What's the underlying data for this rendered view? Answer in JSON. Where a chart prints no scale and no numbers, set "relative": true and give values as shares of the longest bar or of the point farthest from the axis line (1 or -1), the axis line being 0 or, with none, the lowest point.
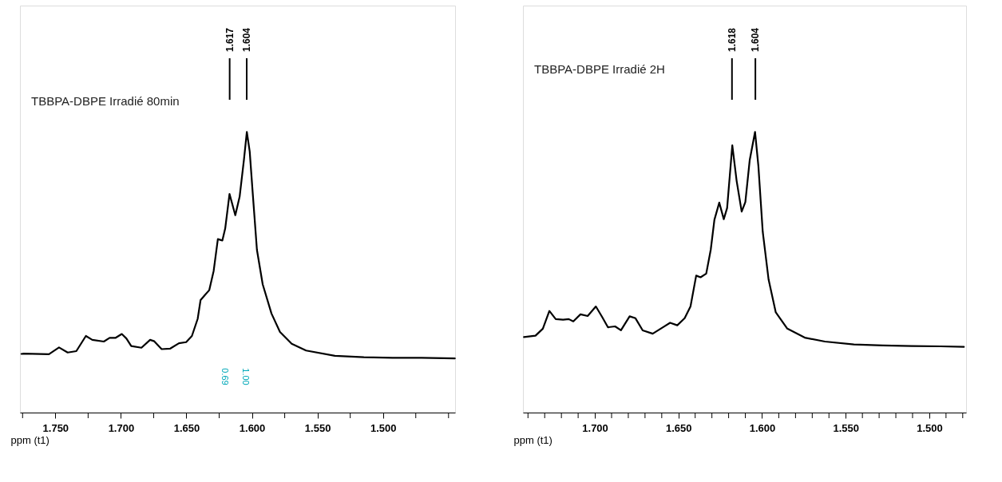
{
  "chart_data": [
    {
      "type": "line",
      "title": "TBBPA-DBPE Irradié 80min",
      "xlabel": "ppm (t1)",
      "relative": true,
      "tick_labels": "x",
      "grid": false,
      "marker": "none",
      "line_style": "solid",
      "xlim": [
        1.777,
        1.445
      ],
      "xticks": [
        {
          "value": 1.775,
          "label": null
        },
        {
          "value": 1.75,
          "label": "1.750"
        },
        {
          "value": 1.725,
          "label": null
        },
        {
          "value": 1.7,
          "label": "1.700"
        },
        {
          "value": 1.675,
          "label": null
        },
        {
          "value": 1.65,
          "label": "1.650"
        },
        {
          "value": 1.625,
          "label": null
        },
        {
          "value": 1.6,
          "label": "1.600"
        },
        {
          "value": 1.575,
          "label": null
        },
        {
          "value": 1.55,
          "label": "1.550"
        },
        {
          "value": 1.525,
          "label": null
        },
        {
          "value": 1.5,
          "label": "1.500"
        },
        {
          "value": 1.475,
          "label": null
        },
        {
          "value": 1.45,
          "label": null
        }
      ],
      "annotations": [
        {
          "text": "1.617",
          "x": 1.617
        },
        {
          "text": "1.604",
          "x": 1.604
        },
        "0.69",
        "1.00"
      ],
      "series": [
        {
          "color": "#000000",
          "x": [
            1.7759,
            1.7741,
            1.7549,
            1.7472,
            1.7406,
            1.734,
            1.7267,
            1.7218,
            1.713,
            1.7086,
            1.7042,
            1.6993,
            1.6958,
            1.6921,
            1.6843,
            1.6777,
            1.6745,
            1.6689,
            1.6623,
            1.6557,
            1.6502,
            1.6458,
            1.6414,
            1.6392,
            1.6326,
            1.6292,
            1.626,
            1.6226,
            1.6204,
            1.6171,
            1.6127,
            1.6094,
            1.6061,
            1.6039,
            1.6017,
            1.5995,
            1.5962,
            1.5918,
            1.5851,
            1.5786,
            1.5697,
            1.5587,
            1.5367,
            1.5146,
            1.4926,
            1.4705,
            1.4452
          ],
          "values": [
            0.209,
            0.21,
            0.208,
            0.232,
            0.214,
            0.219,
            0.273,
            0.259,
            0.253,
            0.266,
            0.266,
            0.28,
            0.264,
            0.237,
            0.231,
            0.259,
            0.254,
            0.226,
            0.228,
            0.247,
            0.251,
            0.273,
            0.334,
            0.401,
            0.436,
            0.505,
            0.618,
            0.613,
            0.656,
            0.779,
            0.703,
            0.769,
            0.901,
            1,
            0.93,
            0.788,
            0.58,
            0.457,
            0.353,
            0.287,
            0.245,
            0.221,
            0.202,
            0.197,
            0.195,
            0.195,
            0.193
          ]
        }
      ]
    },
    {
      "type": "line",
      "title": "TBBPA-DBPE Irradié 2H",
      "xlabel": "ppm (t1)",
      "relative": true,
      "tick_labels": "x",
      "grid": false,
      "marker": "none",
      "line_style": "solid",
      "xlim": [
        1.743,
        1.478
      ],
      "xticks": [
        {
          "value": 1.74,
          "label": null
        },
        {
          "value": 1.73,
          "label": null
        },
        {
          "value": 1.72,
          "label": null
        },
        {
          "value": 1.71,
          "label": null
        },
        {
          "value": 1.7,
          "label": "1.700"
        },
        {
          "value": 1.69,
          "label": null
        },
        {
          "value": 1.68,
          "label": null
        },
        {
          "value": 1.67,
          "label": null
        },
        {
          "value": 1.66,
          "label": null
        },
        {
          "value": 1.65,
          "label": "1.650"
        },
        {
          "value": 1.64,
          "label": null
        },
        {
          "value": 1.63,
          "label": null
        },
        {
          "value": 1.62,
          "label": null
        },
        {
          "value": 1.61,
          "label": null
        },
        {
          "value": 1.6,
          "label": "1.600"
        },
        {
          "value": 1.59,
          "label": null
        },
        {
          "value": 1.58,
          "label": null
        },
        {
          "value": 1.57,
          "label": null
        },
        {
          "value": 1.56,
          "label": null
        },
        {
          "value": 1.55,
          "label": "1.550"
        },
        {
          "value": 1.54,
          "label": null
        },
        {
          "value": 1.53,
          "label": null
        },
        {
          "value": 1.52,
          "label": null
        },
        {
          "value": 1.51,
          "label": null
        },
        {
          "value": 1.5,
          "label": "1.500"
        },
        {
          "value": 1.49,
          "label": null
        },
        {
          "value": 1.48,
          "label": null
        }
      ],
      "annotations": [
        {
          "text": "1.618",
          "x": 1.618
        },
        {
          "text": "1.604",
          "x": 1.604
        }
      ],
      "series": [
        {
          "color": "#000000",
          "x": [
            1.7424,
            1.7355,
            1.7311,
            1.7272,
            1.7234,
            1.719,
            1.7156,
            1.7129,
            1.7086,
            1.7043,
            1.6994,
            1.6957,
            1.6922,
            1.6879,
            1.6844,
            1.6792,
            1.6757,
            1.6714,
            1.6654,
            1.6593,
            1.655,
            1.6507,
            1.6463,
            1.6428,
            1.6394,
            1.6368,
            1.6334,
            1.6307,
            1.6285,
            1.6256,
            1.6229,
            1.6209,
            1.6178,
            1.6152,
            1.6122,
            1.61,
            1.6074,
            1.6042,
            1.6022,
            1.5996,
            1.5961,
            1.5918,
            1.5849,
            1.5745,
            1.5624,
            1.5451,
            1.5278,
            1.5105,
            1.4932,
            1.4793
          ],
          "values": [
            0.269,
            0.274,
            0.299,
            0.362,
            0.333,
            0.331,
            0.333,
            0.325,
            0.35,
            0.344,
            0.378,
            0.341,
            0.304,
            0.307,
            0.293,
            0.343,
            0.336,
            0.293,
            0.281,
            0.304,
            0.32,
            0.311,
            0.336,
            0.378,
            0.488,
            0.482,
            0.495,
            0.58,
            0.687,
            0.748,
            0.689,
            0.729,
            0.952,
            0.825,
            0.716,
            0.75,
            0.899,
            1,
            0.878,
            0.644,
            0.474,
            0.357,
            0.299,
            0.267,
            0.253,
            0.243,
            0.239,
            0.237,
            0.236,
            0.234
          ]
        }
      ]
    }
  ]
}
